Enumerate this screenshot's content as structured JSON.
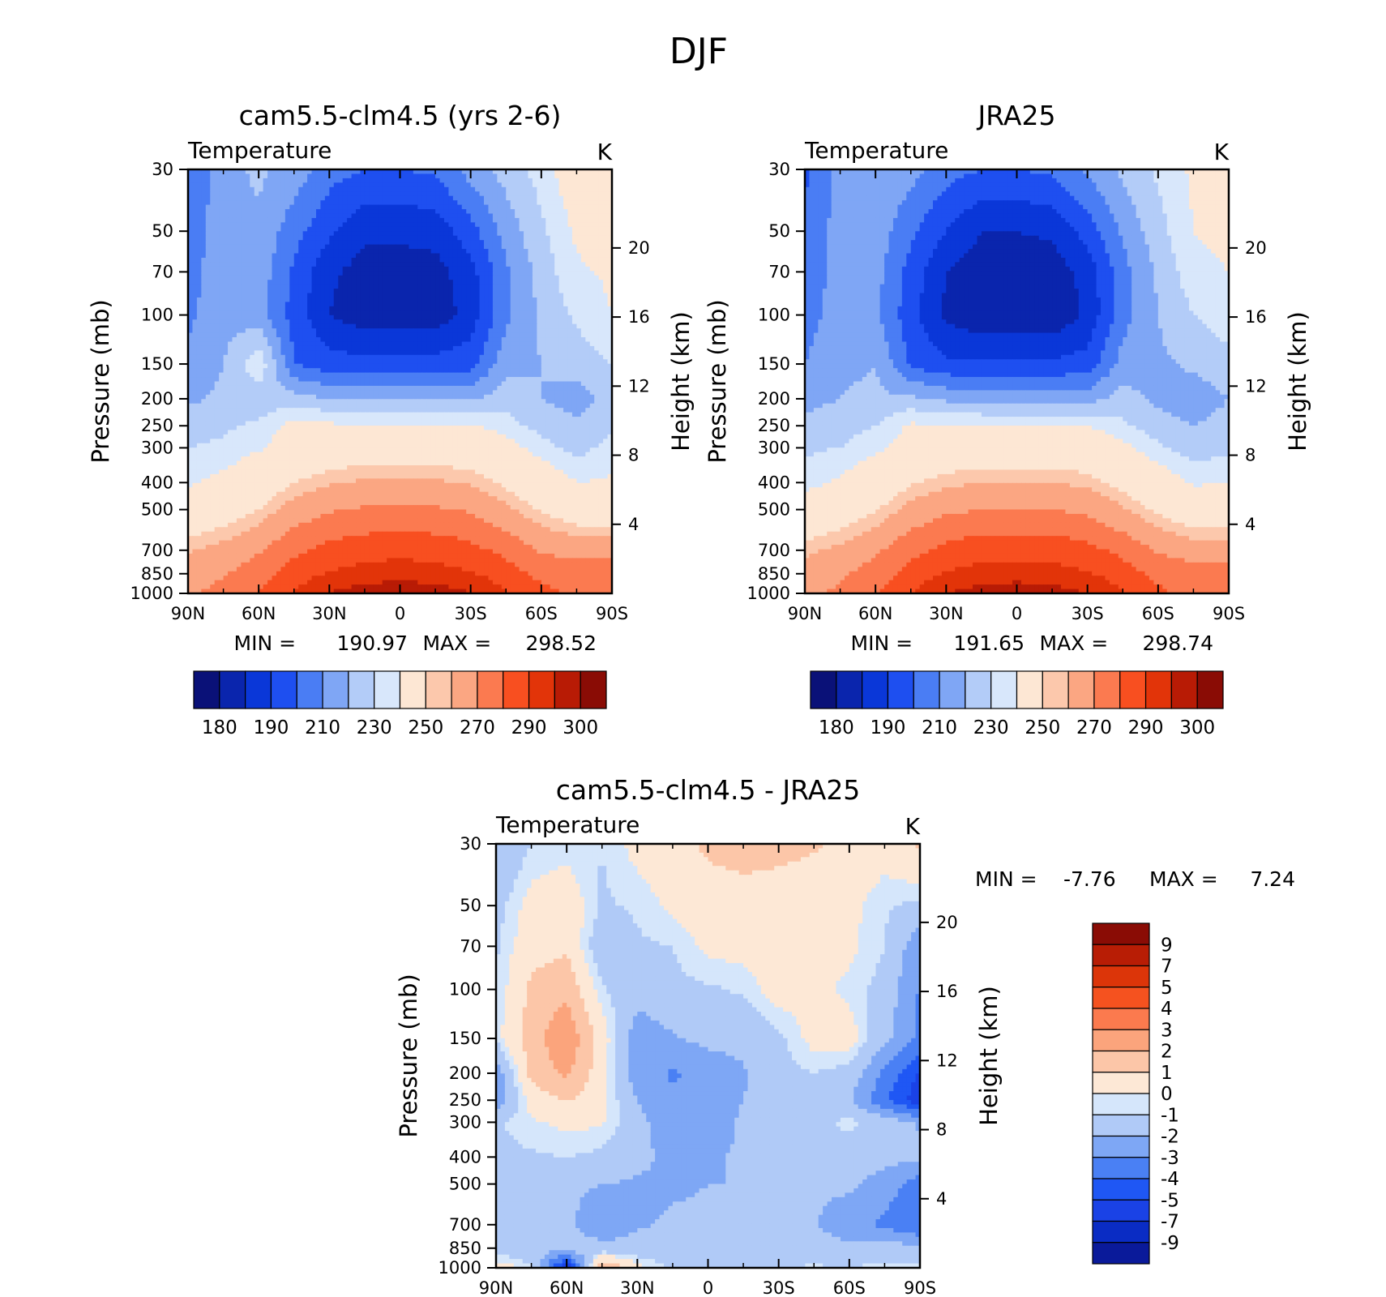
{
  "figure": {
    "title": "DJF"
  },
  "colors": {
    "levels_abs": [
      "#0a1178",
      "#0a25ad",
      "#0a37d8",
      "#1e4ff0",
      "#4a7df4",
      "#7fa6f5",
      "#b3ccf8",
      "#d8e7fb",
      "#fde7d4",
      "#fcc8ac",
      "#fba682",
      "#fb7a50",
      "#f84f20",
      "#e23409",
      "#b81b05",
      "#8a0c05"
    ],
    "levels_diff": [
      "#0a1a9a",
      "#0a2cc4",
      "#1a42e6",
      "#1f57f4",
      "#4a80f4",
      "#7ea7f5",
      "#b0caf7",
      "#d5e6fb",
      "#fde8d6",
      "#fcc6a8",
      "#fba47c",
      "#fb7a4e",
      "#f5521f",
      "#dc3509",
      "#b81d05",
      "#8a0c05"
    ]
  },
  "chart_data": [
    {
      "id": "model",
      "type": "heatmap",
      "title": "cam5.5-clm4.5 (yrs 2-6)",
      "subtitle": "Temperature",
      "units": "K",
      "ylabel": "Pressure (mb)",
      "ylabel_right": "Height (km)",
      "x_ticks": [
        "90N",
        "60N",
        "30N",
        "0",
        "30S",
        "60S",
        "90S"
      ],
      "y_ticks": [
        "30",
        "50",
        "70",
        "100",
        "150",
        "200",
        "250",
        "300",
        "400",
        "500",
        "700",
        "850",
        "1000"
      ],
      "y_right_ticks": [
        "20",
        "16",
        "12",
        "8",
        "4"
      ],
      "min_label": "MIN =",
      "min": "190.97",
      "max_label": "MAX =",
      "max": "298.52",
      "colorbar_labels": [
        "180",
        "190",
        "210",
        "230",
        "250",
        "270",
        "290",
        "300"
      ],
      "ylim": [
        1000,
        30
      ],
      "lat": [
        90,
        75,
        60,
        45,
        30,
        15,
        0,
        -15,
        -30,
        -45,
        -60,
        -75,
        -90
      ],
      "plev": [
        30,
        50,
        70,
        100,
        150,
        200,
        250,
        300,
        400,
        500,
        700,
        850,
        1000
      ],
      "values": [
        [
          205,
          213,
          216,
          213,
          207,
          205,
          205,
          206,
          212,
          217,
          222,
          230,
          232
        ],
        [
          207,
          213,
          214,
          207,
          201,
          196,
          196,
          197,
          203,
          212,
          219,
          226,
          229
        ],
        [
          208,
          213,
          213,
          204,
          196,
          193,
          193,
          193,
          198,
          209,
          217,
          224,
          226
        ],
        [
          209,
          213,
          212,
          203,
          195,
          192,
          192,
          192,
          197,
          209,
          216,
          221,
          225
        ],
        [
          211,
          215,
          224,
          205,
          202,
          202,
          202,
          202,
          203,
          213,
          215,
          217,
          220
        ],
        [
          214,
          216,
          217,
          217,
          215,
          214,
          214,
          214,
          214,
          218,
          215,
          213,
          217
        ],
        [
          218,
          219,
          221,
          227,
          226,
          226,
          226,
          226,
          226,
          222,
          218,
          216,
          219
        ],
        [
          220,
          221,
          224,
          230,
          233,
          234,
          234,
          234,
          233,
          228,
          222,
          218,
          222
        ],
        [
          224,
          227,
          233,
          240,
          244,
          246,
          246,
          246,
          244,
          238,
          231,
          225,
          226
        ],
        [
          230,
          234,
          240,
          249,
          254,
          256,
          256,
          256,
          254,
          247,
          239,
          233,
          233
        ],
        [
          244,
          248,
          254,
          263,
          268,
          271,
          272,
          271,
          268,
          262,
          254,
          251,
          251
        ],
        [
          250,
          254,
          261,
          270,
          276,
          279,
          280,
          279,
          276,
          270,
          262,
          261,
          261
        ],
        [
          254,
          258,
          265,
          276,
          285,
          291,
          293,
          291,
          285,
          276,
          268,
          263,
          263
        ]
      ]
    },
    {
      "id": "obs",
      "type": "heatmap",
      "title": "JRA25",
      "subtitle": "Temperature",
      "units": "K",
      "ylabel": "Pressure (mb)",
      "ylabel_right": "Height (km)",
      "x_ticks": [
        "90N",
        "60N",
        "30N",
        "0",
        "30S",
        "60S",
        "90S"
      ],
      "y_ticks": [
        "30",
        "50",
        "70",
        "100",
        "150",
        "200",
        "250",
        "300",
        "400",
        "500",
        "700",
        "850",
        "1000"
      ],
      "y_right_ticks": [
        "20",
        "16",
        "12",
        "8",
        "4"
      ],
      "min_label": "MIN =",
      "min": "191.65",
      "max_label": "MAX =",
      "max": "298.74",
      "colorbar_labels": [
        "180",
        "190",
        "210",
        "230",
        "250",
        "270",
        "290",
        "300"
      ],
      "ylim": [
        1000,
        30
      ],
      "lat": [
        90,
        75,
        60,
        45,
        30,
        15,
        0,
        -15,
        -30,
        -45,
        -60,
        -75,
        -90
      ],
      "plev": [
        30,
        50,
        70,
        100,
        150,
        200,
        250,
        300,
        400,
        500,
        700,
        850,
        1000
      ],
      "values": [
        [
          204,
          212,
          214,
          212,
          207,
          205,
          205,
          206,
          211,
          216,
          221,
          226,
          229
        ],
        [
          206,
          212,
          213,
          206,
          200,
          195,
          195,
          196,
          202,
          211,
          218,
          225,
          227
        ],
        [
          207,
          212,
          212,
          203,
          195,
          192,
          192,
          192,
          197,
          208,
          216,
          223,
          225
        ],
        [
          208,
          212,
          211,
          202,
          194,
          191,
          191,
          191,
          196,
          208,
          215,
          220,
          223
        ],
        [
          210,
          214,
          215,
          204,
          201,
          201,
          201,
          201,
          202,
          212,
          214,
          216,
          218
        ],
        [
          213,
          215,
          216,
          216,
          214,
          213,
          213,
          213,
          213,
          217,
          214,
          212,
          215
        ],
        [
          217,
          218,
          220,
          226,
          225,
          225,
          225,
          225,
          225,
          221,
          217,
          215,
          217
        ],
        [
          219,
          220,
          223,
          229,
          232,
          233,
          233,
          233,
          232,
          227,
          221,
          217,
          219
        ],
        [
          223,
          226,
          232,
          239,
          243,
          245,
          245,
          245,
          243,
          237,
          230,
          224,
          225
        ],
        [
          229,
          233,
          239,
          248,
          253,
          255,
          255,
          255,
          253,
          246,
          238,
          232,
          232
        ],
        [
          243,
          247,
          253,
          262,
          268,
          271,
          271,
          271,
          268,
          262,
          254,
          250,
          250
        ],
        [
          249,
          253,
          260,
          269,
          276,
          279,
          280,
          279,
          276,
          270,
          262,
          260,
          260
        ],
        [
          253,
          257,
          264,
          275,
          285,
          290,
          292,
          290,
          285,
          276,
          267,
          262,
          262
        ]
      ]
    },
    {
      "id": "diff",
      "type": "heatmap",
      "title": "cam5.5-clm4.5 - JRA25",
      "subtitle": "Temperature",
      "units": "K",
      "ylabel": "Pressure (mb)",
      "ylabel_right": "Height (km)",
      "x_ticks": [
        "90N",
        "60N",
        "30N",
        "0",
        "30S",
        "60S",
        "90S"
      ],
      "y_ticks": [
        "30",
        "50",
        "70",
        "100",
        "150",
        "200",
        "250",
        "300",
        "400",
        "500",
        "700",
        "850",
        "1000"
      ],
      "y_right_ticks": [
        "20",
        "16",
        "12",
        "8",
        "4"
      ],
      "min_label": "MIN =",
      "min": "-7.76",
      "max_label": "MAX =",
      "max": "7.24",
      "colorbar_labels": [
        "9",
        "7",
        "5",
        "4",
        "3",
        "2",
        "1",
        "0",
        "-1",
        "-2",
        "-3",
        "-4",
        "-5",
        "-7",
        "-9"
      ],
      "ylim": [
        1000,
        30
      ],
      "lat": [
        90,
        75,
        60,
        45,
        30,
        15,
        0,
        -15,
        -30,
        -45,
        -60,
        -75,
        -90
      ],
      "plev": [
        30,
        50,
        70,
        100,
        150,
        200,
        250,
        300,
        400,
        500,
        700,
        850,
        1000
      ],
      "values": [
        [
          -1.5,
          -0.5,
          -0.3,
          -0.5,
          0.3,
          0.6,
          1.2,
          1.4,
          1.3,
          1.1,
          0.7,
          0.4,
          1.2
        ],
        [
          -0.8,
          0.3,
          0.6,
          -0.6,
          -0.4,
          0.2,
          0.5,
          0.6,
          0.5,
          0.4,
          0.2,
          -0.4,
          -0.7
        ],
        [
          -0.6,
          0.6,
          0.8,
          -1.2,
          -0.6,
          -0.5,
          0.2,
          0.3,
          0.3,
          0.3,
          0.2,
          -0.5,
          -2.2
        ],
        [
          -0.5,
          1.2,
          1.8,
          -0.4,
          -1.1,
          -0.7,
          -0.6,
          -0.4,
          0.4,
          0.3,
          -0.2,
          -0.8,
          -2.6
        ],
        [
          -0.3,
          1.6,
          2.8,
          0.5,
          -2.1,
          -1.6,
          -1.2,
          -1.2,
          -0.7,
          0.3,
          0.4,
          -1.2,
          -2.8
        ],
        [
          -2.2,
          1.3,
          2.2,
          0.4,
          -2.2,
          -2.6,
          -2.2,
          -1.6,
          -0.8,
          -0.5,
          -0.8,
          -2.8,
          -4.6
        ],
        [
          -2.1,
          0.4,
          1.1,
          0.3,
          -1.5,
          -2.4,
          -2.3,
          -1.5,
          -1.2,
          -1.0,
          -1.4,
          -3.3,
          -5.2
        ],
        [
          -0.6,
          -0.1,
          0.2,
          0.1,
          -1.2,
          -2.1,
          -2.2,
          -1.3,
          -1.1,
          -0.8,
          -0.3,
          -0.9,
          -1.6
        ],
        [
          -0.7,
          -0.6,
          -0.5,
          -0.7,
          -1.3,
          -1.7,
          -1.6,
          -1.4,
          -1.3,
          -1.1,
          -0.9,
          -1.1,
          -1.3
        ],
        [
          -1.2,
          -1.2,
          -1.3,
          -1.5,
          -1.6,
          -1.6,
          -1.5,
          -1.5,
          -1.4,
          -1.4,
          -1.3,
          -2.0,
          -3.0
        ],
        [
          -1.4,
          -1.3,
          -1.3,
          -2.2,
          -1.6,
          -1.4,
          -1.4,
          -1.4,
          -1.3,
          -1.4,
          -2.1,
          -2.7,
          -3.6
        ],
        [
          -1.1,
          -1.1,
          -1.0,
          -1.2,
          -1.2,
          -1.1,
          -1.0,
          -1.0,
          -1.0,
          -1.1,
          -1.3,
          -0.9,
          -1.3
        ],
        [
          0.6,
          -0.4,
          -5.5,
          2.2,
          0.3,
          -0.6,
          -0.5,
          -0.7,
          -0.5,
          -0.4,
          -0.5,
          -0.3,
          -0.3
        ]
      ]
    }
  ]
}
